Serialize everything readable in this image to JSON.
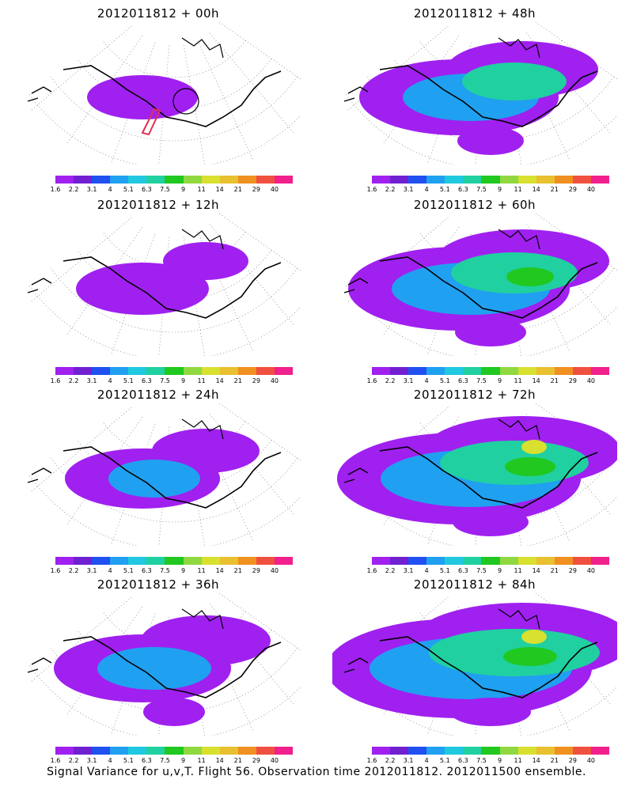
{
  "caption": "Signal Variance for u,v,T. Flight 56. Observation time 2012011812. 2012011500 ensemble.",
  "colorbar": {
    "labels": [
      "1.6",
      "2.2",
      "3.1",
      "4",
      "5.1",
      "6.3",
      "7.5",
      "9",
      "11",
      "14",
      "21",
      "29",
      "40"
    ],
    "colors": [
      "#a020f0",
      "#7020d0",
      "#2050f0",
      "#20a0f0",
      "#20c8e0",
      "#20d0a0",
      "#20c820",
      "#90d840",
      "#d8e030",
      "#e8c030",
      "#f09020",
      "#f05040",
      "#f0208c"
    ]
  },
  "panels": [
    {
      "title": "2012011812 + 00h",
      "intensity": 0
    },
    {
      "title": "2012011812 + 48h",
      "intensity": 4
    },
    {
      "title": "2012011812 + 12h",
      "intensity": 1
    },
    {
      "title": "2012011812 + 60h",
      "intensity": 5
    },
    {
      "title": "2012011812 + 24h",
      "intensity": 2
    },
    {
      "title": "2012011812 + 72h",
      "intensity": 6
    },
    {
      "title": "2012011812 + 36h",
      "intensity": 3
    },
    {
      "title": "2012011812 + 84h",
      "intensity": 7
    }
  ]
}
